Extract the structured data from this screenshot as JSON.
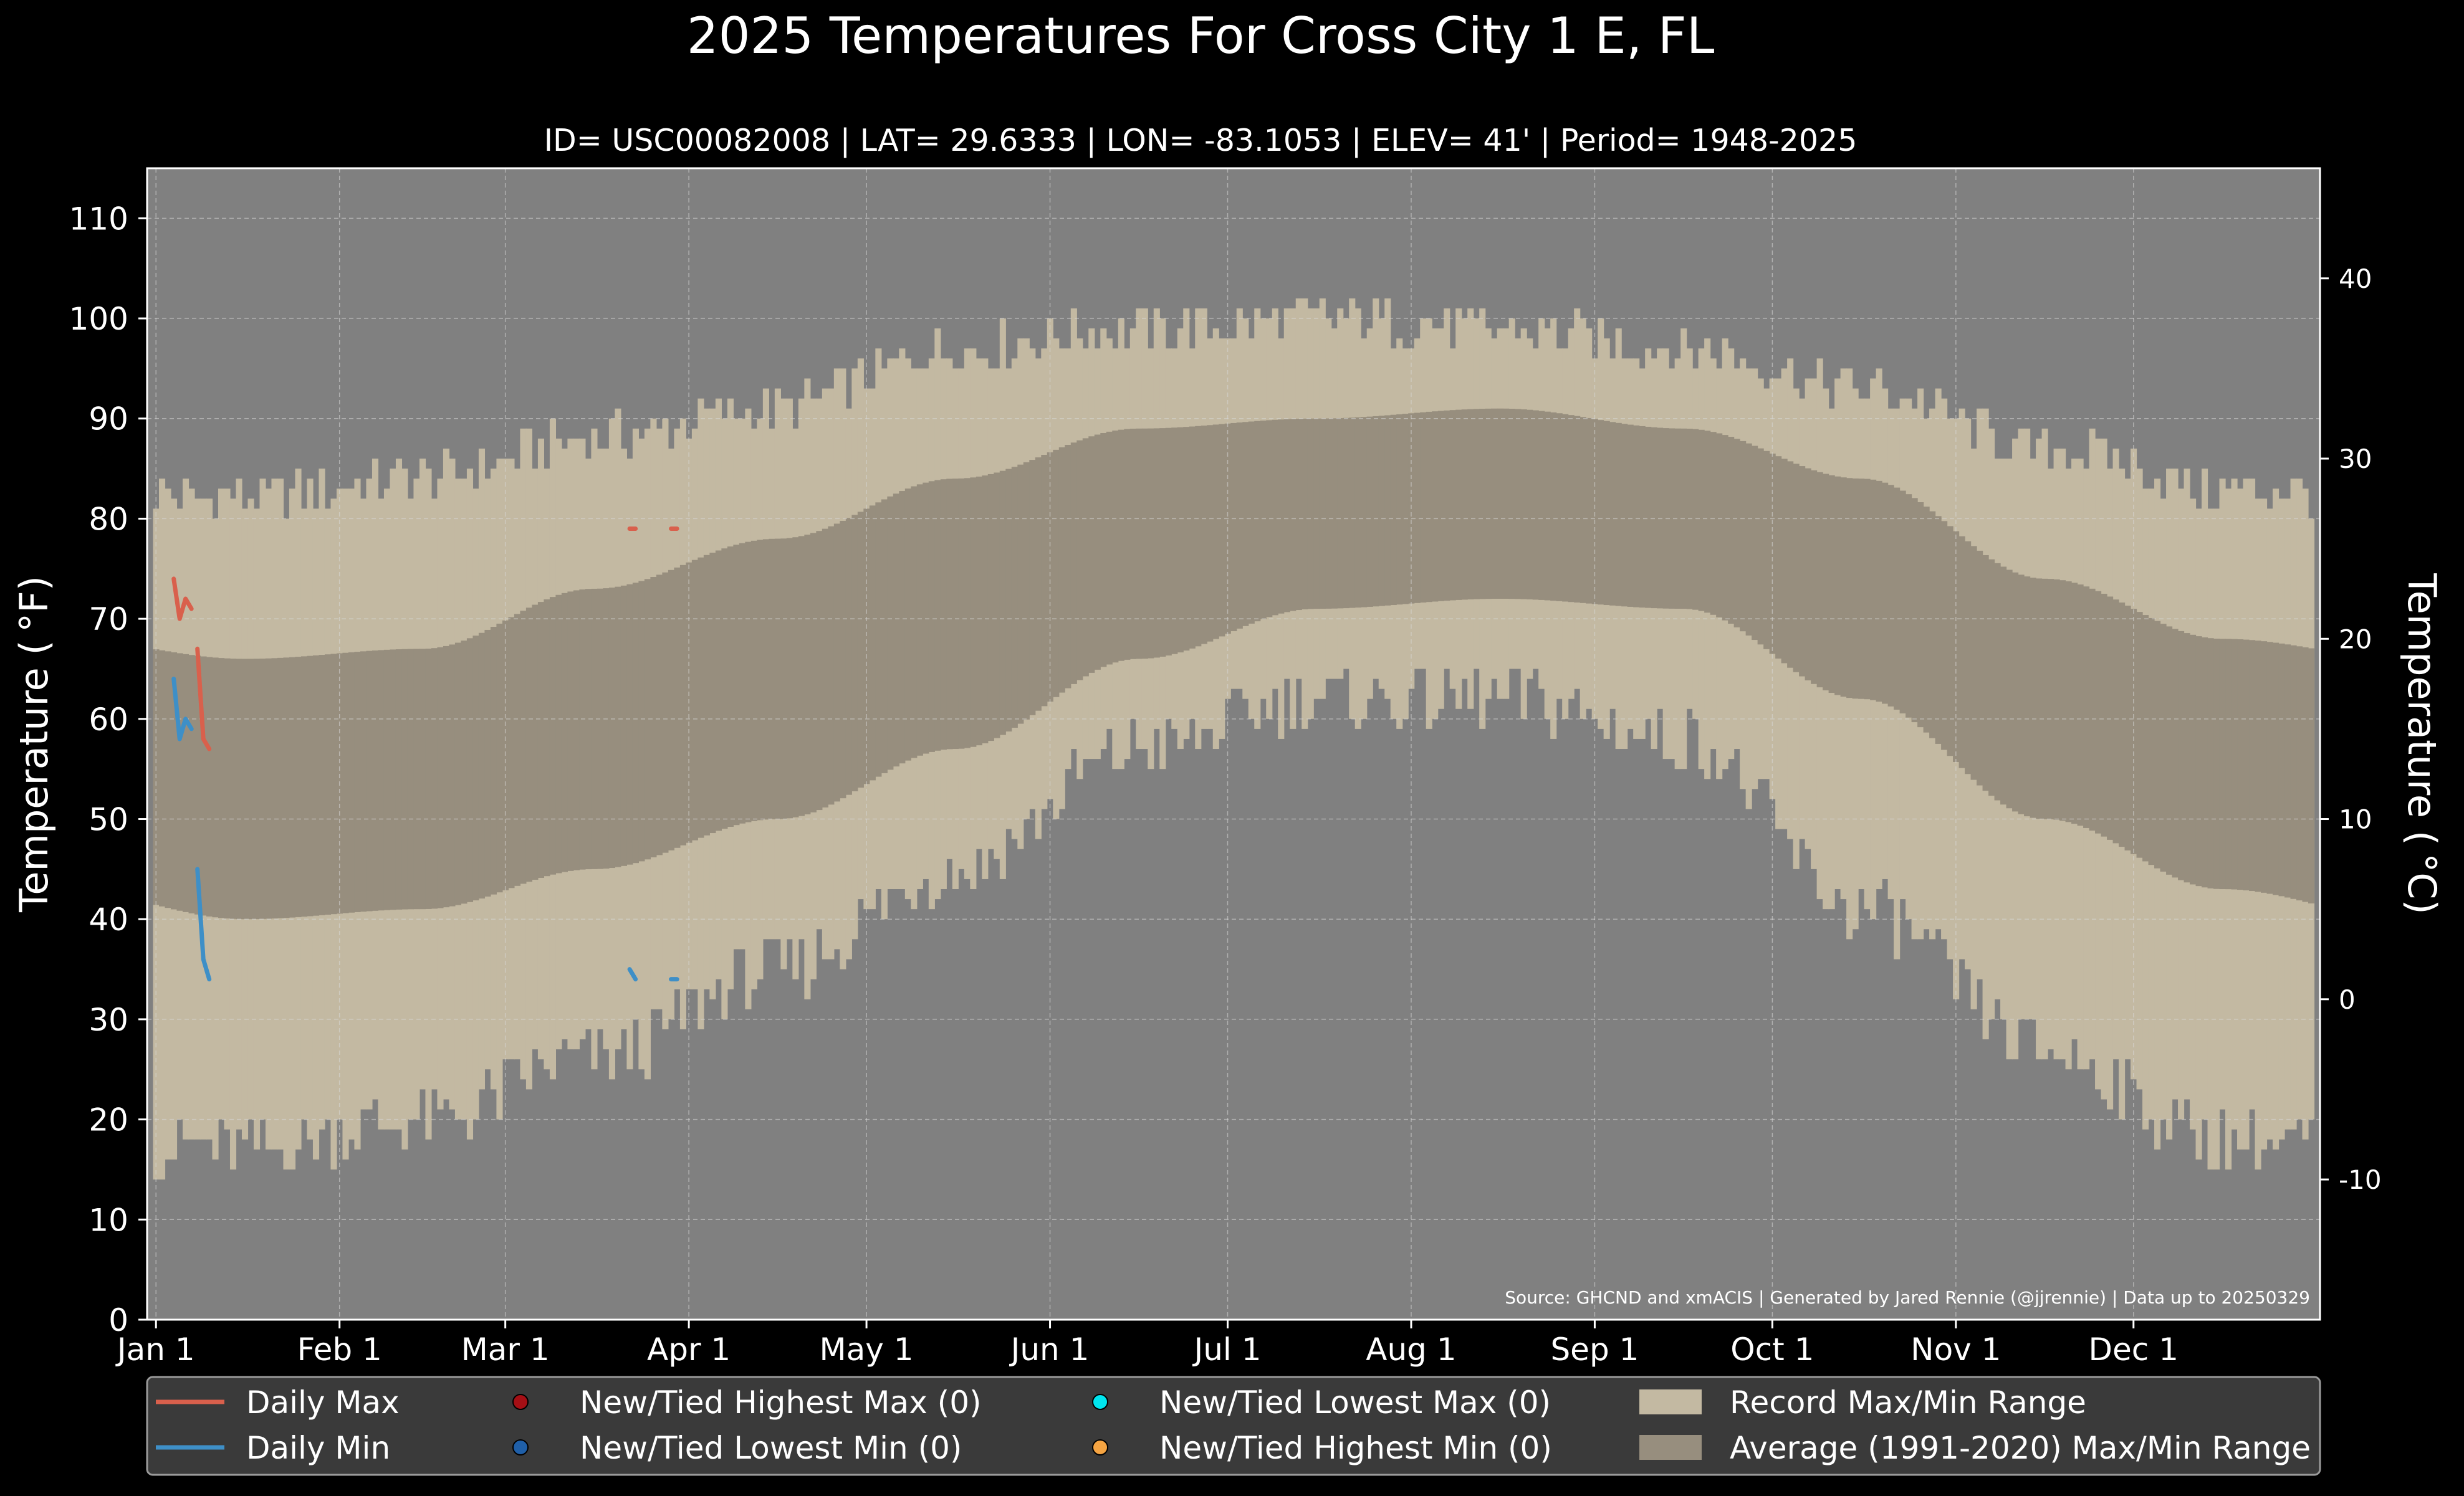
{
  "chart_data": {
    "type": "area",
    "title": "2025 Temperatures For Cross City 1 E, FL",
    "subtitle": "ID= USC00082008 | LAT= 29.6333 | LON= -83.1053 | ELEV= 41' | Period= 1948-2025",
    "ylabel": "Temperature ($^\\circ$F)",
    "ylabel_display": "Temperature ( °F)",
    "ylabel_right": "Temperature ( °C)",
    "source": "Source: GHCND and xmACIS | Generated by Jared Rennie (@jjrennie) | Data up to 20250329",
    "ylim": [
      0,
      115
    ],
    "xlim_day": [
      -1.5,
      365.5
    ],
    "grid": true,
    "legend_placement": "bottom",
    "yticks": [
      0,
      10,
      20,
      30,
      40,
      50,
      60,
      70,
      80,
      90,
      100,
      110
    ],
    "yticks_c": [
      -10,
      0,
      10,
      20,
      30,
      40
    ],
    "x_month_ticks": [
      {
        "label": "Jan 1",
        "day": 0
      },
      {
        "label": "Feb 1",
        "day": 31
      },
      {
        "label": "Mar 1",
        "day": 59
      },
      {
        "label": "Apr 1",
        "day": 90
      },
      {
        "label": "May 1",
        "day": 120
      },
      {
        "label": "Jun 1",
        "day": 151
      },
      {
        "label": "Jul 1",
        "day": 181
      },
      {
        "label": "Aug 1",
        "day": 212
      },
      {
        "label": "Sep 1",
        "day": 243
      },
      {
        "label": "Oct 1",
        "day": 273
      },
      {
        "label": "Nov 1",
        "day": 304
      },
      {
        "label": "Dec 1",
        "day": 334
      }
    ],
    "record_max_monthly": [
      82,
      84,
      88,
      91,
      97,
      99,
      100,
      99,
      97,
      93,
      87,
      83
    ],
    "record_min_monthly": [
      17,
      20,
      26,
      35,
      45,
      57,
      62,
      62,
      58,
      41,
      27,
      18
    ],
    "avg_max_monthly": [
      66,
      67,
      73,
      78,
      84,
      89,
      90,
      91,
      89,
      84,
      74,
      68
    ],
    "avg_min_monthly": [
      40,
      41,
      45,
      50,
      57,
      66,
      71,
      72,
      71,
      62,
      50,
      43
    ],
    "series": [
      {
        "name": "Daily Max",
        "color": "#d9604c",
        "segments": [
          {
            "days": [
              3,
              4,
              5,
              6
            ],
            "values": [
              74,
              70,
              72,
              71
            ]
          },
          {
            "days": [
              7,
              8,
              9
            ],
            "values": [
              67,
              58,
              57
            ]
          },
          {
            "days": [
              80,
              81
            ],
            "values": [
              79,
              79
            ]
          },
          {
            "days": [
              87,
              88
            ],
            "values": [
              79,
              79
            ]
          }
        ]
      },
      {
        "name": "Daily Min",
        "color": "#3e8fc7",
        "segments": [
          {
            "days": [
              3,
              4,
              5,
              6
            ],
            "values": [
              64,
              58,
              60,
              59
            ]
          },
          {
            "days": [
              7,
              8,
              9
            ],
            "values": [
              45,
              36,
              34
            ]
          },
          {
            "days": [
              80,
              81
            ],
            "values": [
              35,
              34
            ]
          },
          {
            "days": [
              87,
              88
            ],
            "values": [
              34,
              34
            ]
          }
        ]
      }
    ],
    "legend": [
      {
        "label": "Daily Max",
        "kind": "line",
        "color": "#d9604c"
      },
      {
        "label": "Daily Min",
        "kind": "line",
        "color": "#3e8fc7"
      },
      {
        "label": "New/Tied Highest Max (0)",
        "kind": "dot",
        "color": "#a50f15"
      },
      {
        "label": "New/Tied Lowest Min (0)",
        "kind": "dot",
        "color": "#1f5fa8"
      },
      {
        "label": "New/Tied Lowest Max (0)",
        "kind": "dot",
        "color": "#00e5ee"
      },
      {
        "label": "New/Tied Highest Min (0)",
        "kind": "dot",
        "color": "#f5a442"
      },
      {
        "label": "Record Max/Min Range",
        "kind": "patch",
        "color": "#c3b9a2"
      },
      {
        "label": "Average (1991-2020) Max/Min Range",
        "kind": "patch",
        "color": "#978e7e"
      }
    ],
    "colors": {
      "background": "#000000",
      "plot_background": "#808080",
      "record_range": "#c3b9a2",
      "average_range": "#978e7e",
      "legend_background": "#3a3a3a"
    }
  }
}
